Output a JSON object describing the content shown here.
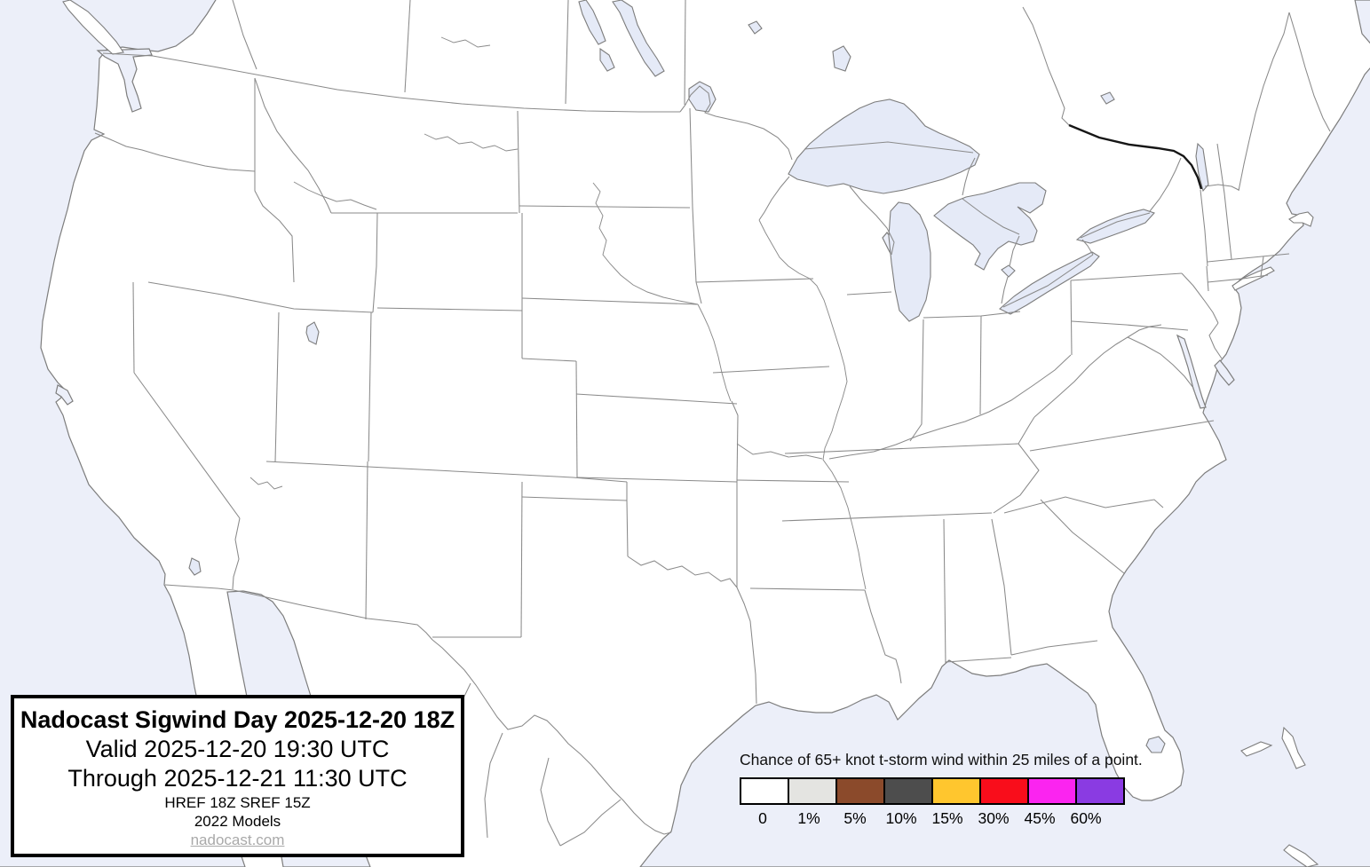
{
  "map": {
    "region_name": "contiguous-united-states-forecast-map",
    "water_color": "#ECEFF9",
    "lake_color": "#E5EAF7",
    "land_color": "#FFFFFF",
    "coast_border_color": "#7D7D7D",
    "state_border_color": "#8A8A8A",
    "international_border_color": "#161616"
  },
  "title_box": {
    "title": "Nadocast Sigwind Day 2025-12-20 18Z",
    "valid_line": "Valid 2025-12-20 19:30 UTC",
    "through_line": "Through 2025-12-21 11:30 UTC",
    "models_line1": "HREF 18Z SREF 15Z",
    "models_line2": "2022 Models",
    "site_link": "nadocast.com"
  },
  "legend": {
    "title": "Chance of 65+ knot t-storm wind within 25 miles of a point.",
    "stops": [
      {
        "label": "0",
        "color": "#FFFFFF"
      },
      {
        "label": "1%",
        "color": "#E4E4E1"
      },
      {
        "label": "5%",
        "color": "#8B4A2B"
      },
      {
        "label": "10%",
        "color": "#4D4D4D"
      },
      {
        "label": "15%",
        "color": "#FFC62E"
      },
      {
        "label": "30%",
        "color": "#F90D1B"
      },
      {
        "label": "45%",
        "color": "#FB24F0"
      },
      {
        "label": "60%",
        "color": "#8A3BE2"
      }
    ]
  }
}
